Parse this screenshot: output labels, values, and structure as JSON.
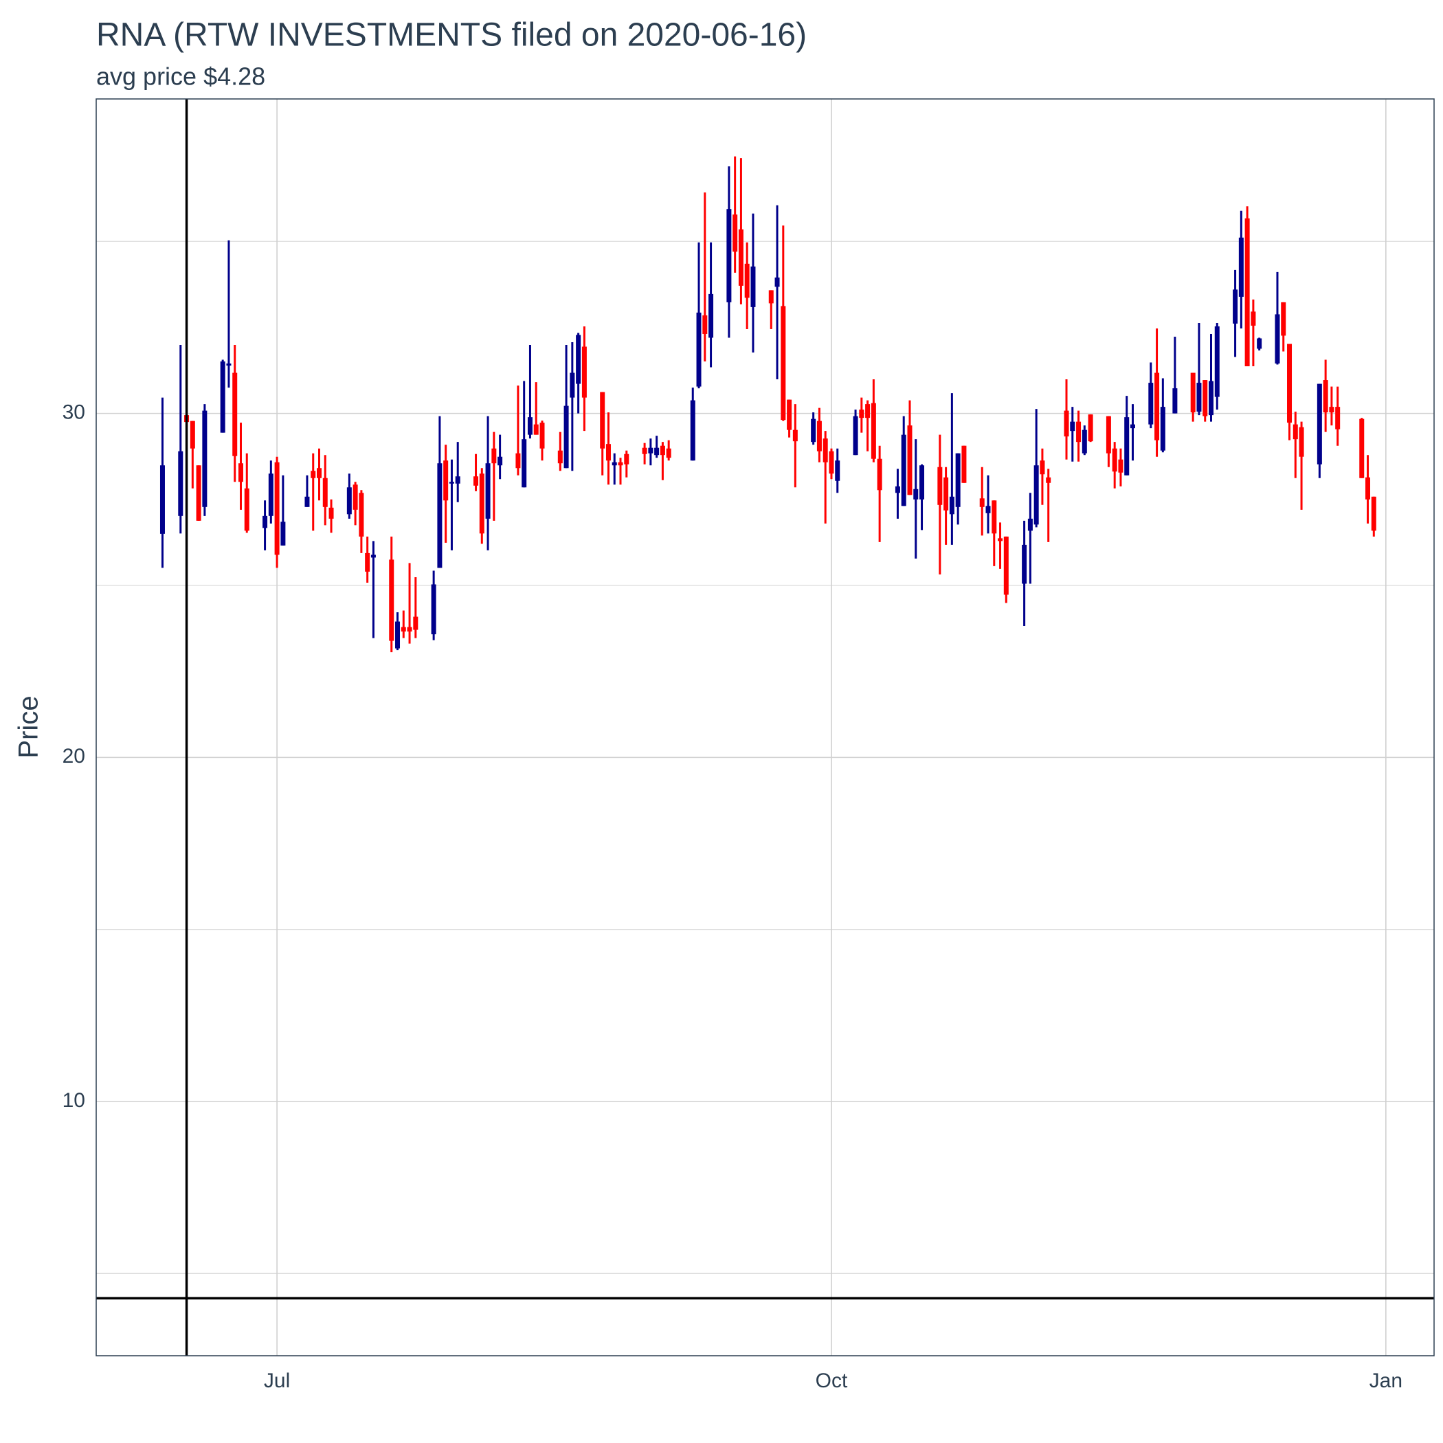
{
  "chart_data": {
    "type": "candlestick",
    "title": "RNA (RTW INVESTMENTS filed on 2020-06-16)",
    "subtitle": "avg price $4.28",
    "y_label": "Price",
    "up_color": "#00008b",
    "down_color": "#ff0000",
    "grid": true,
    "xlim": [
      "2020-06-01",
      "2021-01-09"
    ],
    "xticks": [
      {
        "value": "2020-07-01",
        "label": "Jul"
      },
      {
        "value": "2020-10-01",
        "label": "Oct"
      },
      {
        "value": "2021-01-01",
        "label": "Jan"
      }
    ],
    "ylim": [
      2.61,
      39.14
    ],
    "yticks": [
      10,
      20,
      30
    ],
    "minor_yticks": [
      5,
      15,
      25,
      35
    ],
    "vline": "2020-06-16",
    "hline": 4.28,
    "x": [
      "2020-06-12",
      "2020-06-15",
      "2020-06-16",
      "2020-06-17",
      "2020-06-18",
      "2020-06-19",
      "2020-06-22",
      "2020-06-23",
      "2020-06-24",
      "2020-06-25",
      "2020-06-26",
      "2020-06-29",
      "2020-06-30",
      "2020-07-01",
      "2020-07-02",
      "2020-07-06",
      "2020-07-07",
      "2020-07-08",
      "2020-07-09",
      "2020-07-10",
      "2020-07-13",
      "2020-07-14",
      "2020-07-15",
      "2020-07-16",
      "2020-07-17",
      "2020-07-20",
      "2020-07-21",
      "2020-07-22",
      "2020-07-23",
      "2020-07-24",
      "2020-07-27",
      "2020-07-28",
      "2020-07-29",
      "2020-07-30",
      "2020-07-31",
      "2020-08-03",
      "2020-08-04",
      "2020-08-05",
      "2020-08-06",
      "2020-08-07",
      "2020-08-10",
      "2020-08-11",
      "2020-08-12",
      "2020-08-13",
      "2020-08-14",
      "2020-08-17",
      "2020-08-18",
      "2020-08-19",
      "2020-08-20",
      "2020-08-21",
      "2020-08-24",
      "2020-08-25",
      "2020-08-26",
      "2020-08-27",
      "2020-08-28",
      "2020-08-31",
      "2020-09-01",
      "2020-09-02",
      "2020-09-03",
      "2020-09-04",
      "2020-09-08",
      "2020-09-09",
      "2020-09-10",
      "2020-09-11",
      "2020-09-14",
      "2020-09-15",
      "2020-09-16",
      "2020-09-17",
      "2020-09-18",
      "2020-09-21",
      "2020-09-22",
      "2020-09-23",
      "2020-09-24",
      "2020-09-25",
      "2020-09-28",
      "2020-09-29",
      "2020-09-30",
      "2020-10-01",
      "2020-10-02",
      "2020-10-05",
      "2020-10-06",
      "2020-10-07",
      "2020-10-08",
      "2020-10-09",
      "2020-10-12",
      "2020-10-13",
      "2020-10-14",
      "2020-10-15",
      "2020-10-16",
      "2020-10-19",
      "2020-10-20",
      "2020-10-21",
      "2020-10-22",
      "2020-10-23",
      "2020-10-26",
      "2020-10-27",
      "2020-10-28",
      "2020-10-29",
      "2020-10-30",
      "2020-11-02",
      "2020-11-03",
      "2020-11-04",
      "2020-11-05",
      "2020-11-06",
      "2020-11-09",
      "2020-11-10",
      "2020-11-11",
      "2020-11-12",
      "2020-11-13",
      "2020-11-16",
      "2020-11-17",
      "2020-11-18",
      "2020-11-19",
      "2020-11-20",
      "2020-11-23",
      "2020-11-24",
      "2020-11-25",
      "2020-11-27",
      "2020-11-30",
      "2020-12-01",
      "2020-12-02",
      "2020-12-03",
      "2020-12-04",
      "2020-12-07",
      "2020-12-08",
      "2020-12-09",
      "2020-12-10",
      "2020-12-11",
      "2020-12-14",
      "2020-12-15",
      "2020-12-16",
      "2020-12-17",
      "2020-12-18",
      "2020-12-21",
      "2020-12-22",
      "2020-12-23",
      "2020-12-24",
      "2020-12-28",
      "2020-12-29",
      "2020-12-30"
    ],
    "open": [
      26.5,
      27.02,
      29.95,
      29.78,
      28.49,
      27.28,
      29.44,
      31.39,
      31.18,
      28.55,
      27.82,
      26.67,
      27.02,
      28.58,
      26.16,
      27.28,
      28.33,
      28.41,
      28.12,
      27.26,
      27.07,
      27.93,
      27.69,
      25.94,
      25.81,
      25.75,
      23.17,
      23.79,
      23.79,
      24.09,
      23.58,
      25.51,
      28.63,
      27.96,
      27.96,
      28.17,
      28.25,
      26.94,
      28.98,
      28.49,
      28.84,
      27.85,
      29.38,
      29.68,
      29.73,
      28.92,
      28.41,
      30.46,
      30.86,
      31.94,
      30.62,
      29.11,
      28.49,
      28.58,
      28.82,
      29.0,
      28.84,
      28.79,
      29.06,
      28.98,
      28.63,
      30.78,
      32.85,
      32.2,
      33.23,
      35.78,
      35.35,
      34.35,
      33.09,
      33.58,
      33.68,
      33.12,
      30.4,
      29.52,
      29.17,
      29.78,
      29.27,
      28.9,
      28.04,
      28.79,
      30.11,
      30.27,
      30.3,
      28.68,
      27.69,
      27.31,
      29.65,
      27.5,
      27.5,
      28.44,
      28.14,
      27.07,
      27.28,
      29.06,
      27.53,
      27.1,
      27.47,
      26.37,
      26.42,
      25.05,
      26.59,
      26.77,
      28.63,
      28.14,
      30.08,
      29.49,
      29.76,
      28.84,
      29.97,
      29.92,
      28.98,
      28.66,
      28.2,
      29.57,
      29.68,
      31.18,
      28.92,
      30.0,
      31.18,
      30.05,
      30.97,
      29.95,
      30.48,
      32.61,
      33.39,
      35.67,
      32.96,
      31.88,
      31.45,
      33.23,
      32.02,
      29.68,
      29.6,
      28.52,
      30.97,
      30.19,
      30.19,
      29.84,
      28.14,
      27.58
    ],
    "high": [
      30.46,
      31.99,
      30.05,
      29.78,
      28.49,
      30.27,
      31.56,
      35.03,
      31.99,
      29.73,
      28.84,
      27.47,
      28.63,
      28.74,
      28.2,
      28.2,
      28.84,
      28.98,
      28.79,
      27.5,
      28.25,
      28.01,
      27.77,
      26.42,
      26.29,
      26.42,
      24.22,
      24.27,
      25.65,
      25.24,
      25.43,
      29.92,
      29.09,
      28.66,
      29.17,
      28.82,
      28.41,
      29.92,
      29.46,
      29.38,
      30.81,
      30.94,
      31.99,
      30.91,
      29.79,
      29.46,
      31.99,
      32.07,
      32.34,
      32.53,
      30.62,
      30.03,
      28.84,
      28.71,
      28.92,
      29.14,
      29.27,
      29.35,
      29.17,
      29.22,
      30.75,
      34.97,
      36.42,
      34.97,
      37.18,
      37.47,
      37.42,
      34.97,
      35.81,
      33.58,
      36.05,
      35.46,
      30.4,
      30.27,
      30.03,
      30.16,
      29.49,
      28.98,
      28.98,
      30.11,
      30.46,
      30.38,
      30.99,
      29.06,
      28.39,
      29.92,
      30.38,
      29.25,
      28.52,
      29.38,
      28.44,
      30.59,
      28.84,
      29.06,
      28.44,
      28.2,
      27.47,
      26.83,
      26.42,
      26.88,
      27.69,
      30.13,
      28.98,
      28.39,
      30.99,
      30.19,
      30.08,
      29.65,
      29.97,
      29.92,
      29.17,
      28.98,
      30.51,
      30.27,
      31.48,
      32.47,
      31.02,
      32.23,
      31.18,
      32.63,
      30.97,
      32.31,
      32.63,
      34.17,
      35.89,
      36.02,
      33.31,
      32.2,
      34.11,
      33.23,
      32.02,
      30.05,
      29.76,
      30.86,
      31.56,
      30.78,
      30.78,
      29.87,
      28.79,
      27.58
    ],
    "low": [
      25.51,
      26.51,
      29.6,
      27.82,
      26.88,
      27.02,
      29.44,
      30.75,
      28.01,
      27.2,
      26.53,
      26.02,
      26.8,
      25.51,
      26.16,
      27.28,
      26.59,
      27.47,
      26.75,
      26.53,
      26.94,
      26.75,
      25.94,
      25.08,
      23.47,
      23.06,
      23.12,
      23.47,
      23.31,
      23.47,
      23.41,
      25.51,
      26.24,
      26.02,
      27.42,
      27.74,
      26.21,
      26.02,
      26.88,
      28.09,
      28.2,
      27.85,
      29.27,
      29.38,
      28.63,
      28.33,
      28.41,
      28.33,
      30.0,
      29.49,
      28.2,
      27.93,
      27.93,
      27.93,
      28.14,
      28.52,
      28.49,
      28.71,
      28.06,
      28.63,
      28.63,
      30.73,
      31.51,
      31.34,
      32.2,
      34.09,
      33.17,
      32.45,
      31.77,
      32.45,
      30.99,
      29.78,
      29.3,
      27.85,
      29.09,
      28.58,
      26.8,
      28.09,
      27.69,
      28.79,
      29.44,
      28.9,
      28.58,
      26.26,
      26.94,
      27.31,
      27.63,
      25.78,
      26.61,
      25.32,
      26.18,
      26.18,
      26.77,
      27.98,
      26.45,
      26.51,
      25.56,
      25.48,
      24.49,
      23.82,
      25.05,
      26.69,
      27.34,
      26.26,
      28.66,
      28.6,
      28.6,
      28.79,
      29.17,
      28.44,
      27.82,
      27.88,
      28.2,
      28.63,
      29.57,
      28.74,
      28.87,
      30.0,
      29.76,
      29.95,
      29.76,
      29.76,
      30.11,
      31.64,
      32.47,
      31.37,
      31.37,
      31.83,
      31.42,
      31.8,
      29.22,
      28.12,
      27.2,
      28.12,
      29.46,
      29.65,
      29.06,
      28.12,
      26.8,
      26.42
    ],
    "close": [
      28.49,
      28.9,
      29.75,
      28.98,
      26.88,
      30.08,
      31.51,
      31.45,
      28.76,
      28.01,
      26.59,
      27.02,
      28.25,
      25.89,
      26.85,
      27.58,
      28.12,
      28.12,
      27.28,
      26.94,
      27.85,
      27.2,
      26.42,
      25.4,
      25.89,
      23.39,
      23.95,
      23.66,
      23.66,
      23.71,
      25.03,
      28.55,
      27.47,
      28.01,
      28.17,
      27.9,
      26.51,
      28.55,
      28.55,
      28.74,
      28.41,
      29.25,
      29.89,
      29.38,
      28.98,
      28.55,
      30.22,
      31.18,
      32.28,
      30.46,
      28.98,
      28.63,
      28.58,
      28.49,
      28.52,
      28.82,
      29.0,
      29.0,
      28.79,
      28.71,
      30.38,
      32.93,
      32.31,
      33.47,
      35.94,
      34.7,
      33.71,
      33.36,
      34.27,
      33.2,
      33.95,
      29.81,
      29.52,
      29.19,
      29.84,
      28.9,
      28.58,
      28.25,
      28.63,
      29.92,
      29.87,
      29.87,
      28.68,
      27.77,
      27.88,
      29.38,
      27.63,
      27.8,
      28.49,
      27.34,
      27.18,
      27.58,
      28.84,
      27.98,
      27.28,
      27.31,
      26.51,
      26.29,
      24.73,
      26.18,
      26.94,
      28.49,
      28.23,
      27.98,
      29.33,
      29.76,
      29.17,
      29.52,
      29.19,
      28.84,
      28.31,
      28.28,
      29.89,
      29.68,
      30.89,
      29.22,
      30.19,
      30.73,
      30.03,
      30.89,
      29.92,
      30.94,
      32.53,
      33.6,
      35.11,
      31.37,
      32.55,
      32.18,
      32.88,
      32.26,
      29.73,
      29.25,
      28.74,
      30.86,
      30.03,
      30.03,
      29.54,
      28.12,
      27.5,
      26.59
    ]
  }
}
